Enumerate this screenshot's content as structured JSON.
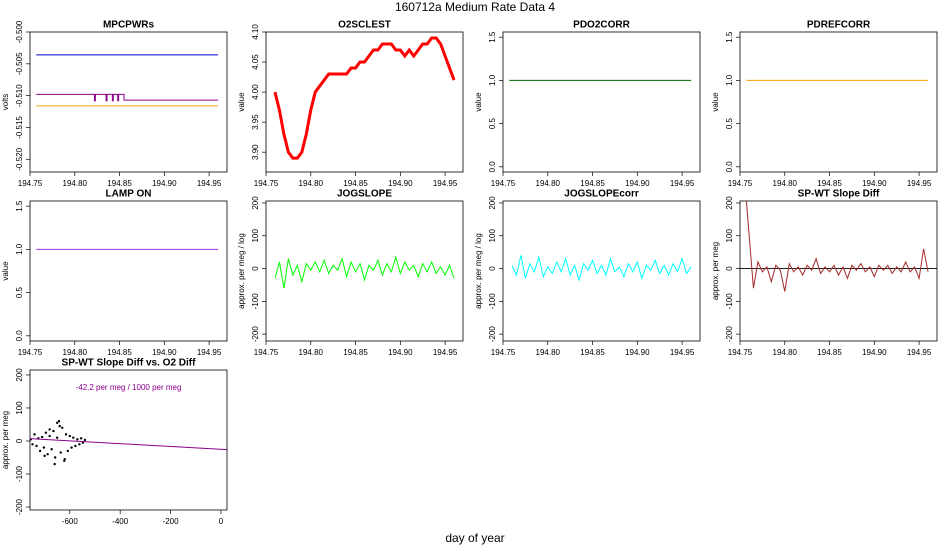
{
  "title": "160712a   Medium Rate Data 4",
  "xlabel": "day of year",
  "chart_data": [
    {
      "type": "line",
      "title": "MPCPWRs",
      "ylabel": "volts",
      "xlim": [
        194.75,
        194.97
      ],
      "xticks": [
        194.75,
        {
          "value": 194.8,
          "label": "194.80"
        },
        194.85,
        {
          "value": 194.9,
          "label": "194.90"
        },
        194.95
      ],
      "ylim": [
        -0.522,
        -0.5
      ],
      "yticks": [
        {
          "value": -0.5,
          "label": "-0.500"
        },
        -0.505,
        {
          "value": -0.51,
          "label": "-0.510"
        },
        -0.515,
        {
          "value": -0.52,
          "label": "-0.520"
        }
      ],
      "series": [
        {
          "color": "#0000cd",
          "x": [
            194.757,
            194.96
          ],
          "values": [
            -0.5036,
            -0.5036
          ]
        },
        {
          "color": "#8b008b",
          "x": [
            194.757,
            194.822,
            194.822,
            194.823,
            194.823,
            194.835,
            194.835,
            194.836,
            194.836,
            194.842,
            194.842,
            194.843,
            194.843,
            194.848,
            194.848,
            194.849,
            194.849,
            194.855,
            194.855,
            194.96
          ],
          "values": [
            -0.5098,
            -0.5098,
            -0.5108,
            -0.5108,
            -0.5098,
            -0.5098,
            -0.5108,
            -0.5108,
            -0.5098,
            -0.5098,
            -0.5108,
            -0.5108,
            -0.5098,
            -0.5098,
            -0.5108,
            -0.5108,
            -0.5098,
            -0.5098,
            -0.5107,
            -0.5107
          ]
        },
        {
          "color": "#ffa500",
          "x": [
            194.757,
            194.96
          ],
          "values": [
            -0.5116,
            -0.5116
          ]
        }
      ]
    },
    {
      "type": "line",
      "title": "O2SCLEST",
      "ylabel": "value",
      "xlim": [
        194.75,
        194.97
      ],
      "xticks": [
        194.75,
        {
          "value": 194.8,
          "label": "194.80"
        },
        194.85,
        {
          "value": 194.9,
          "label": "194.90"
        },
        194.95
      ],
      "ylim": [
        3.867,
        4.1
      ],
      "yticks": [
        {
          "value": 3.9,
          "label": "3.90"
        },
        3.95,
        {
          "value": 4.0,
          "label": "4.00"
        },
        4.05,
        {
          "value": 4.1,
          "label": "4.10"
        }
      ],
      "series": [
        {
          "color": "#ff0000",
          "width": 3,
          "x": [
            194.76,
            194.765,
            194.77,
            194.775,
            194.78,
            194.785,
            194.79,
            194.795,
            194.8,
            194.805,
            194.81,
            194.815,
            194.82,
            194.825,
            194.83,
            194.835,
            194.84,
            194.845,
            194.85,
            194.855,
            194.86,
            194.865,
            194.87,
            194.875,
            194.88,
            194.885,
            194.89,
            194.895,
            194.9,
            194.905,
            194.91,
            194.915,
            194.92,
            194.925,
            194.93,
            194.935,
            194.94,
            194.945,
            194.95,
            194.955,
            194.96
          ],
          "values": [
            4.0,
            3.97,
            3.93,
            3.9,
            3.89,
            3.89,
            3.9,
            3.93,
            3.97,
            4.0,
            4.01,
            4.02,
            4.03,
            4.03,
            4.03,
            4.03,
            4.03,
            4.04,
            4.04,
            4.05,
            4.05,
            4.06,
            4.07,
            4.07,
            4.08,
            4.08,
            4.08,
            4.07,
            4.07,
            4.06,
            4.07,
            4.06,
            4.07,
            4.08,
            4.08,
            4.09,
            4.09,
            4.08,
            4.06,
            4.04,
            4.02
          ]
        }
      ]
    },
    {
      "type": "line",
      "title": "PDO2CORR",
      "ylabel": "value",
      "xlim": [
        194.75,
        194.97
      ],
      "xticks": [
        194.75,
        {
          "value": 194.8,
          "label": "194.80"
        },
        194.85,
        {
          "value": 194.9,
          "label": "194.90"
        },
        194.95
      ],
      "ylim": [
        -0.06,
        1.56
      ],
      "yticks": [
        {
          "value": 0,
          "label": "0.0"
        },
        0.5,
        {
          "value": 1,
          "label": "1.0"
        },
        1.5
      ],
      "series": [
        {
          "color": "#006400",
          "x": [
            194.757,
            194.96
          ],
          "values": [
            1,
            1
          ]
        }
      ]
    },
    {
      "type": "line",
      "title": "PDREFCORR",
      "ylabel": "value",
      "xlim": [
        194.75,
        194.97
      ],
      "xticks": [
        194.75,
        {
          "value": 194.8,
          "label": "194.80"
        },
        194.85,
        {
          "value": 194.9,
          "label": "194.90"
        },
        194.95
      ],
      "ylim": [
        -0.06,
        1.56
      ],
      "yticks": [
        {
          "value": 0,
          "label": "0.0"
        },
        0.5,
        {
          "value": 1,
          "label": "1.0"
        },
        1.5
      ],
      "series": [
        {
          "color": "#ffa500",
          "x": [
            194.757,
            194.96
          ],
          "values": [
            1,
            1
          ]
        }
      ]
    },
    {
      "type": "line",
      "title": "LAMP ON",
      "ylabel": "value",
      "xlim": [
        194.75,
        194.97
      ],
      "xticks": [
        194.75,
        {
          "value": 194.8,
          "label": "194.80"
        },
        194.85,
        {
          "value": 194.9,
          "label": "194.90"
        },
        194.95
      ],
      "ylim": [
        -0.06,
        1.56
      ],
      "yticks": [
        {
          "value": 0,
          "label": "0.0"
        },
        0.5,
        {
          "value": 1,
          "label": "1.0"
        },
        1.5
      ],
      "series": [
        {
          "color": "#9b30ff",
          "x": [
            194.757,
            194.96
          ],
          "values": [
            1,
            1
          ]
        }
      ]
    },
    {
      "type": "line",
      "title": "JOGSLOPE",
      "ylabel": "approx. per meg / log",
      "xlim": [
        194.75,
        194.97
      ],
      "xticks": [
        194.75,
        {
          "value": 194.8,
          "label": "194.80"
        },
        194.85,
        {
          "value": 194.9,
          "label": "194.90"
        },
        194.95
      ],
      "ylim": [
        -221,
        206
      ],
      "yticks": [
        -200,
        -100,
        0,
        100,
        200
      ],
      "series": [
        {
          "color": "#00ff00",
          "x": [
            194.76,
            194.765,
            194.77,
            194.775,
            194.78,
            194.785,
            194.79,
            194.795,
            194.8,
            194.805,
            194.81,
            194.815,
            194.82,
            194.825,
            194.83,
            194.835,
            194.84,
            194.845,
            194.85,
            194.855,
            194.86,
            194.865,
            194.87,
            194.875,
            194.88,
            194.885,
            194.89,
            194.895,
            194.9,
            194.905,
            194.91,
            194.915,
            194.92,
            194.925,
            194.93,
            194.935,
            194.94,
            194.945,
            194.95,
            194.955,
            194.96
          ],
          "values": [
            -30,
            20,
            -60,
            30,
            -20,
            10,
            -40,
            15,
            -5,
            20,
            -10,
            25,
            -15,
            10,
            -5,
            30,
            -25,
            20,
            -10,
            15,
            -35,
            10,
            -5,
            25,
            -20,
            15,
            -10,
            35,
            -15,
            20,
            -5,
            10,
            -25,
            15,
            -10,
            20,
            -15,
            5,
            -20,
            10,
            -30
          ]
        }
      ]
    },
    {
      "type": "line",
      "title": "JOGSLOPEcorr",
      "ylabel": "approx. per meg / log",
      "xlim": [
        194.75,
        194.97
      ],
      "xticks": [
        194.75,
        {
          "value": 194.8,
          "label": "194.80"
        },
        194.85,
        {
          "value": 194.9,
          "label": "194.90"
        },
        194.95
      ],
      "ylim": [
        -221,
        206
      ],
      "yticks": [
        -200,
        -100,
        0,
        100,
        200
      ],
      "series": [
        {
          "color": "#00ffff",
          "x": [
            194.76,
            194.765,
            194.77,
            194.775,
            194.78,
            194.785,
            194.79,
            194.795,
            194.8,
            194.805,
            194.81,
            194.815,
            194.82,
            194.825,
            194.83,
            194.835,
            194.84,
            194.845,
            194.85,
            194.855,
            194.86,
            194.865,
            194.87,
            194.875,
            194.88,
            194.885,
            194.89,
            194.895,
            194.9,
            194.905,
            194.91,
            194.915,
            194.92,
            194.925,
            194.93,
            194.935,
            194.94,
            194.945,
            194.95,
            194.955,
            194.96
          ],
          "values": [
            10,
            -20,
            40,
            -30,
            15,
            -10,
            35,
            -25,
            5,
            -15,
            20,
            -10,
            30,
            -20,
            10,
            -35,
            15,
            -5,
            25,
            -15,
            10,
            -20,
            30,
            -10,
            5,
            -25,
            15,
            -10,
            20,
            -30,
            10,
            -5,
            25,
            -15,
            10,
            -20,
            15,
            -10,
            30,
            -15,
            5
          ]
        }
      ]
    },
    {
      "type": "line",
      "title": "SP-WT Slope Diff",
      "ylabel": "approx. per meg",
      "xlim": [
        194.75,
        194.97
      ],
      "xticks": [
        194.75,
        {
          "value": 194.8,
          "label": "194.80"
        },
        194.85,
        {
          "value": 194.9,
          "label": "194.90"
        },
        194.95
      ],
      "ylim": [
        -221,
        206
      ],
      "yticks": [
        -200,
        -100,
        0,
        100,
        200
      ],
      "hline": 0,
      "series": [
        {
          "color": "#a52a2a",
          "x": [
            194.757,
            194.765,
            194.77,
            194.775,
            194.78,
            194.785,
            194.79,
            194.795,
            194.8,
            194.805,
            194.81,
            194.815,
            194.82,
            194.825,
            194.83,
            194.835,
            194.84,
            194.845,
            194.85,
            194.855,
            194.86,
            194.865,
            194.87,
            194.875,
            194.88,
            194.885,
            194.89,
            194.895,
            194.9,
            194.905,
            194.91,
            194.915,
            194.92,
            194.925,
            194.93,
            194.935,
            194.94,
            194.945,
            194.95,
            194.955,
            194.96
          ],
          "values": [
            210,
            -60,
            20,
            -10,
            5,
            -40,
            10,
            -5,
            -70,
            15,
            -10,
            5,
            -20,
            10,
            -5,
            30,
            -15,
            5,
            -10,
            10,
            -20,
            5,
            -30,
            10,
            -5,
            15,
            -10,
            5,
            -25,
            10,
            -5,
            10,
            -15,
            5,
            -10,
            20,
            -10,
            5,
            -30,
            60,
            -10
          ]
        }
      ]
    },
    {
      "type": "scatter",
      "title": "SP-WT Slope Diff vs. O2 Diff",
      "ylabel": "approx. per meg",
      "annotation": "-42.2 per meg / 1000 per meg",
      "annotation_color": "#8b008b",
      "xlim": [
        -758,
        24
      ],
      "xticks": [
        -600,
        -400,
        -200,
        0
      ],
      "ylim": [
        -209,
        215
      ],
      "yticks": [
        -200,
        -100,
        0,
        100,
        200
      ],
      "color": "#000000",
      "x": [
        -755,
        -748,
        -740,
        -732,
        -725,
        -718,
        -710,
        -703,
        -695,
        -688,
        -680,
        -672,
        -665,
        -658,
        -650,
        -643,
        -636,
        -630,
        -622,
        -615,
        -608,
        -600,
        -593,
        -586,
        -578,
        -570,
        -562,
        -555,
        -548,
        -540,
        -700,
        -680,
        -660,
        -640,
        -620,
        -650
      ],
      "values": [
        5,
        -10,
        20,
        -15,
        8,
        -30,
        12,
        -20,
        25,
        -40,
        15,
        -25,
        30,
        -50,
        10,
        60,
        -35,
        40,
        -60,
        20,
        -30,
        15,
        -20,
        10,
        -15,
        5,
        -10,
        8,
        -5,
        3,
        -45,
        35,
        -70,
        45,
        -55,
        55
      ],
      "fit_line": {
        "color": "#8b008b",
        "x": [
          -758,
          24
        ],
        "y": [
          7,
          -26
        ]
      }
    }
  ]
}
